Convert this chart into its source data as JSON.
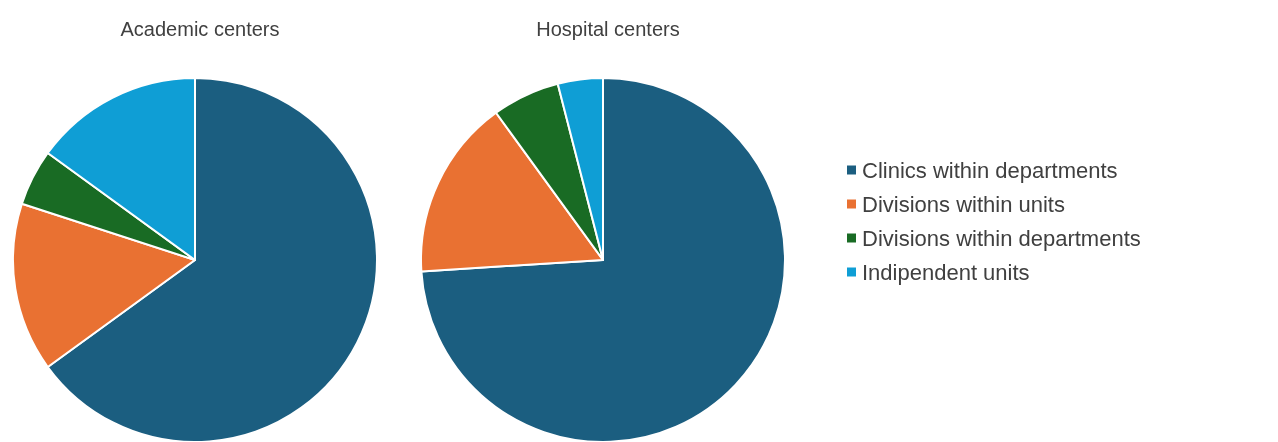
{
  "chart_data": {
    "type": "pie",
    "categories": [
      "Clinics within departments",
      "Divisions within units",
      "Divisions within departments",
      "Indipendent units"
    ],
    "colors": [
      "#1b5e80",
      "#e97132",
      "#196b24",
      "#0f9ed5"
    ],
    "legend": "right",
    "series": [
      {
        "name": "Academic centers",
        "values": [
          65,
          15,
          5,
          15
        ]
      },
      {
        "name": "Hospital centers",
        "values": [
          74,
          16,
          6,
          4
        ]
      }
    ]
  }
}
